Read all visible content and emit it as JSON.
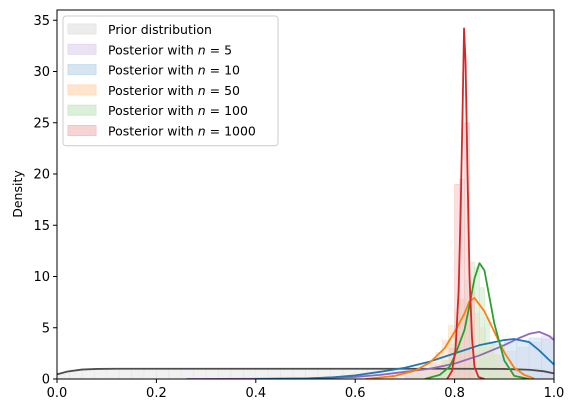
{
  "chart_data": {
    "type": "area",
    "title": "",
    "xlabel": "",
    "ylabel": "Density",
    "xlim": [
      0.0,
      1.0
    ],
    "ylim": [
      0,
      36
    ],
    "xticks": [
      "0.0",
      "0.2",
      "0.4",
      "0.6",
      "0.8",
      "1.0"
    ],
    "yticks": [
      "0",
      "5",
      "10",
      "15",
      "20",
      "25",
      "30",
      "35"
    ],
    "grid": false,
    "legend_position": "top-left",
    "series": [
      {
        "name": "Prior distribution",
        "label_parts": [
          "Prior distribution"
        ],
        "color": "#4d4d4d",
        "fill": "#e6e6e6",
        "bin_width": 0.025,
        "hist": [
          0.6,
          0.9,
          0.95,
          1.0,
          0.95,
          1.0,
          1.0,
          0.95,
          1.0,
          1.0,
          0.95,
          1.0,
          1.0,
          0.95,
          1.0,
          1.0,
          1.0,
          0.95,
          1.0,
          1.0,
          1.0,
          0.95,
          1.0,
          1.0,
          1.0,
          0.95,
          1.0,
          1.0,
          1.0,
          0.95,
          1.0,
          1.0,
          1.0,
          0.95,
          1.0,
          1.0,
          1.0,
          0.95,
          1.0,
          0.7
        ],
        "kde_x": [
          0.0,
          0.02,
          0.05,
          0.08,
          0.12,
          0.2,
          0.4,
          0.6,
          0.8,
          0.9,
          0.95,
          0.98,
          1.0
        ],
        "kde_y": [
          0.45,
          0.72,
          0.92,
          0.98,
          1.0,
          1.0,
          1.0,
          1.0,
          1.0,
          0.98,
          0.9,
          0.75,
          0.55
        ]
      },
      {
        "name": "Posterior with n = 5",
        "label_parts": [
          "Posterior with ",
          "n",
          " = 5"
        ],
        "color": "#9467bd",
        "fill": "#e4daf0",
        "bin_start": 0.7,
        "bin_width": 0.025,
        "hist": [
          0.3,
          0.5,
          0.7,
          0.9,
          1.2,
          1.5,
          1.9,
          2.3,
          2.7,
          3.1,
          3.6,
          4.2,
          5.3,
          5.4
        ],
        "kde_x": [
          0.26,
          0.4,
          0.5,
          0.6,
          0.65,
          0.7,
          0.75,
          0.8,
          0.85,
          0.9,
          0.93,
          0.95,
          0.97,
          0.99,
          1.0
        ],
        "kde_y": [
          0.0,
          0.02,
          0.06,
          0.2,
          0.4,
          0.7,
          1.0,
          1.5,
          2.3,
          3.3,
          4.0,
          4.4,
          4.6,
          4.2,
          3.8
        ]
      },
      {
        "name": "Posterior with n = 10",
        "label_parts": [
          "Posterior with ",
          "n",
          " = 10"
        ],
        "color": "#1f77b4",
        "fill": "#c7dcee",
        "bin_start": 0.7,
        "bin_width": 0.025,
        "hist": [
          0.6,
          1.0,
          1.4,
          1.8,
          2.3,
          2.8,
          3.1,
          3.4,
          3.6,
          3.8,
          4.0,
          3.9,
          3.6,
          3.0
        ],
        "kde_x": [
          0.4,
          0.5,
          0.55,
          0.6,
          0.65,
          0.7,
          0.75,
          0.8,
          0.85,
          0.88,
          0.9,
          0.92,
          0.95,
          0.97,
          1.0
        ],
        "kde_y": [
          0.0,
          0.05,
          0.15,
          0.35,
          0.7,
          1.1,
          1.7,
          2.5,
          3.3,
          3.6,
          3.8,
          3.9,
          3.6,
          2.8,
          1.4
        ]
      },
      {
        "name": "Posterior with n = 50",
        "label_parts": [
          "Posterior with ",
          "n",
          " = 50"
        ],
        "color": "#ff7f0e",
        "fill": "#ffdcbe",
        "bin_start": 0.7,
        "bin_width": 0.0125,
        "hist": [
          0.2,
          0.4,
          0.6,
          1.0,
          1.6,
          2.6,
          3.8,
          5.2,
          6.6,
          7.8,
          7.5,
          6.4,
          5.0,
          3.6,
          2.4,
          1.5,
          0.9,
          0.5,
          0.3,
          0.1
        ],
        "kde_x": [
          0.62,
          0.68,
          0.72,
          0.75,
          0.78,
          0.8,
          0.82,
          0.83,
          0.84,
          0.86,
          0.88,
          0.9,
          0.92,
          0.94,
          0.96
        ],
        "kde_y": [
          0.0,
          0.3,
          0.8,
          1.6,
          3.0,
          4.6,
          6.4,
          7.6,
          7.9,
          6.6,
          4.6,
          2.6,
          1.1,
          0.4,
          0.05
        ]
      },
      {
        "name": "Posterior with n = 100",
        "label_parts": [
          "Posterior with ",
          "n",
          " = 100"
        ],
        "color": "#2ca02c",
        "fill": "#cdebcb",
        "bin_start": 0.76,
        "bin_width": 0.01,
        "hist": [
          0.3,
          0.8,
          1.8,
          3.4,
          5.6,
          7.8,
          9.6,
          11.4,
          10.9,
          8.9,
          6.0,
          3.6,
          1.8,
          0.8,
          0.3
        ],
        "kde_x": [
          0.74,
          0.77,
          0.79,
          0.8,
          0.82,
          0.83,
          0.84,
          0.85,
          0.86,
          0.87,
          0.88,
          0.9,
          0.92,
          0.95
        ],
        "kde_y": [
          0.0,
          0.4,
          1.2,
          2.2,
          4.8,
          7.2,
          9.8,
          11.3,
          10.6,
          8.0,
          5.4,
          1.8,
          0.3,
          0.0
        ]
      },
      {
        "name": "Posterior with n = 1000",
        "label_parts": [
          "Posterior with ",
          "n",
          " = 1000"
        ],
        "color": "#d62728",
        "fill": "#f4c4c4",
        "bin_start": 0.79,
        "bin_width": 0.01,
        "hist": [
          3.0,
          19.0,
          19.5,
          25.0,
          8.5
        ],
        "kde_x": [
          0.785,
          0.795,
          0.802,
          0.808,
          0.812,
          0.816,
          0.819,
          0.822,
          0.826,
          0.83,
          0.835,
          0.84,
          0.848,
          0.86
        ],
        "kde_y": [
          0.0,
          0.8,
          3.0,
          8.5,
          16.0,
          26.0,
          34.2,
          31.0,
          20.0,
          10.0,
          4.0,
          1.2,
          0.2,
          0.0
        ]
      }
    ]
  }
}
